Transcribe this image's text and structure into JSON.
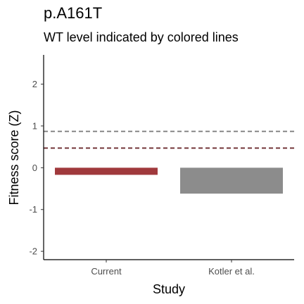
{
  "chart_data": {
    "type": "bar",
    "title": "p.A161T",
    "subtitle": "WT level indicated by colored lines",
    "xlabel": "Study",
    "ylabel": "Fitness score (Z)",
    "categories": [
      "Current",
      "Kotler et al."
    ],
    "values": [
      -0.17,
      -0.62
    ],
    "colors": [
      "#a0393c",
      "#8c8c8c"
    ],
    "ylim": [
      -2.2,
      2.7
    ],
    "yticks": [
      -2,
      -1,
      0,
      1,
      2
    ],
    "reference_lines": [
      {
        "value": 0.87,
        "color": "#808080",
        "style": "dashed"
      },
      {
        "value": 0.47,
        "color": "#6b2a2e",
        "style": "dashed"
      }
    ],
    "grid": false
  }
}
